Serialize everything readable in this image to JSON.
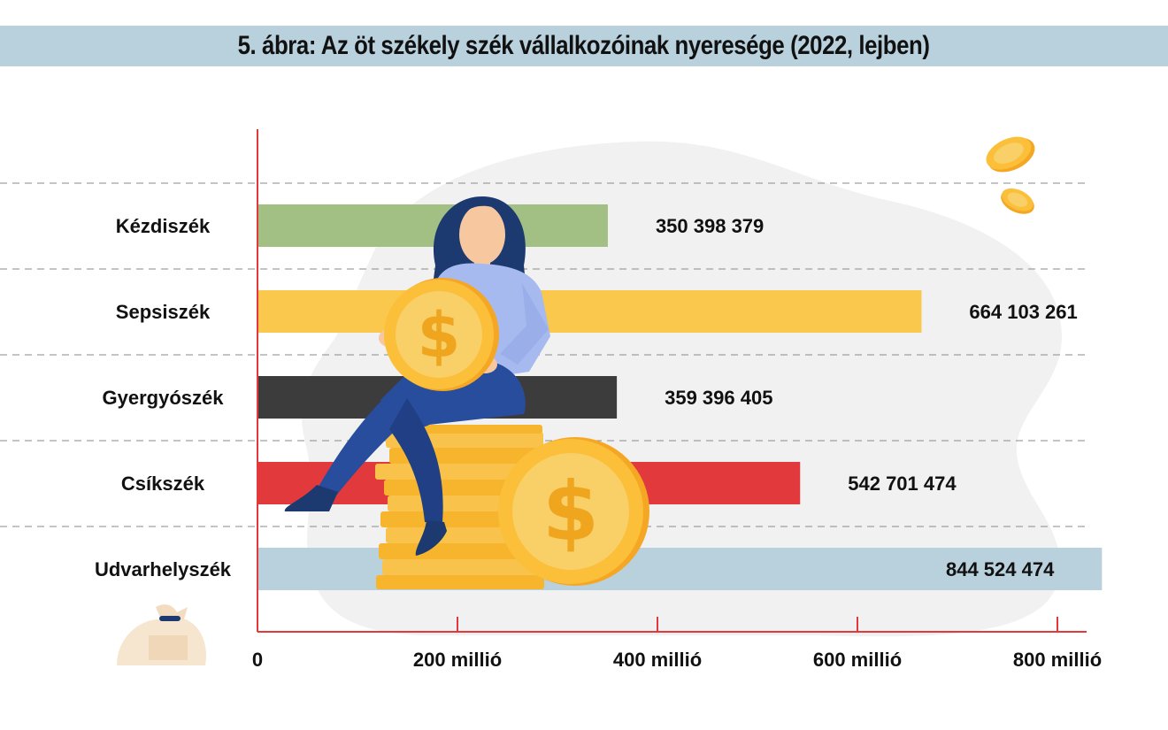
{
  "title": "5. ábra: Az öt székely szék vállalkozóinak nyeresége (2022, lejben)",
  "chart_data": {
    "type": "bar",
    "orientation": "horizontal",
    "title": "5. ábra: Az öt székely szék vállalkozóinak nyeresége (2022, lejben)",
    "categories": [
      "Kézdiszék",
      "Sepsiszék",
      "Gyergyószék",
      "Csíkszék",
      "Udvarhelyszék"
    ],
    "values": [
      350398379,
      664103261,
      359396405,
      542701474,
      844524474
    ],
    "value_labels": [
      "350 398 379",
      "664 103 261",
      "359 396 405",
      "542 701 474",
      "844 524 474"
    ],
    "colors": [
      "#a2c083",
      "#f9c84c",
      "#3c3c3c",
      "#e2393c",
      "#b9d1dd"
    ],
    "x_ticks": [
      0,
      200000000,
      400000000,
      600000000,
      800000000
    ],
    "x_tick_labels": [
      "0",
      "200 millió",
      "400 millió",
      "600 millió",
      "800 millió"
    ],
    "xlim": [
      0,
      840000000
    ],
    "xlabel": "",
    "ylabel": "",
    "grid": "dashed horizontal separators",
    "axis_color": "#e2393c"
  }
}
